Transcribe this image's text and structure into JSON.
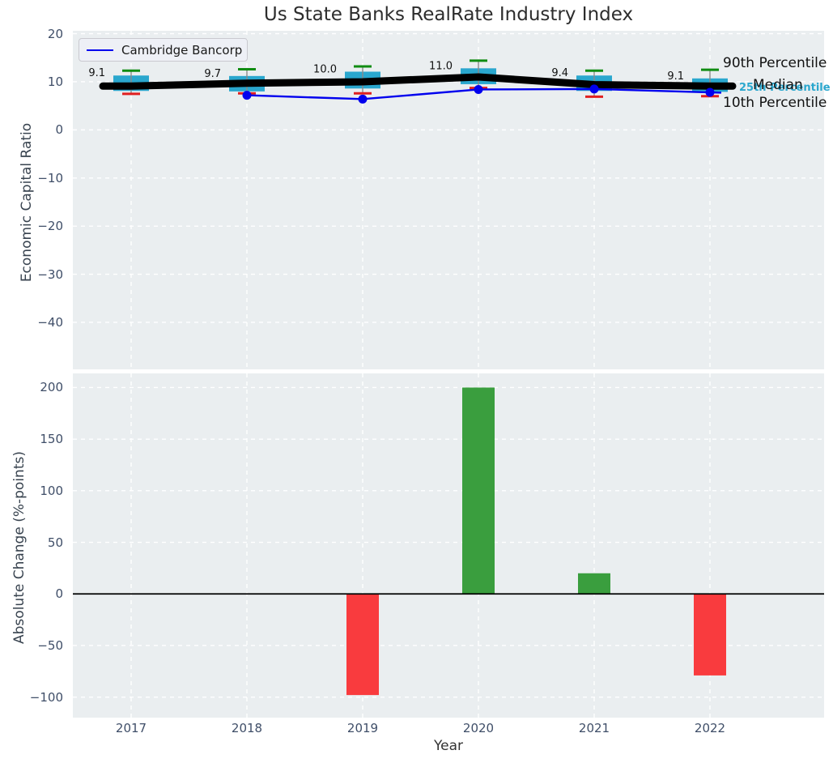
{
  "annotations": {
    "p90": "90th Percentile",
    "median": "Median",
    "p25": "25th Percentile",
    "p10": "10th Percentile"
  },
  "colors": {
    "plot_background": "#eaeef0",
    "grid": "#ffffff",
    "box_fill": "#2aa7ce",
    "whisker": "#8a8a8a",
    "cap_high_green": "#108c12",
    "cap_low_red": "#e02020",
    "median_line": "#000000",
    "company_line_blue": "#0000ee",
    "bar_positive_green": "#3a9e3e",
    "bar_negative_red": "#f93b3e",
    "accent_text_cyan": "#2aa7ce"
  },
  "chart_data": [
    {
      "type": "boxplot",
      "title": "Us State Banks RealRate Industry Index",
      "ylabel": "Economic Capital Ratio",
      "categories": [
        "2017",
        "2018",
        "2019",
        "2020",
        "2021",
        "2022"
      ],
      "yticks": [
        20,
        10,
        0,
        -10,
        -20,
        -30,
        -40
      ],
      "ytick_labels": [
        "20",
        "10",
        "0",
        "−10",
        "−20",
        "−30",
        "−40"
      ],
      "ylim": [
        -49.7,
        20.6
      ],
      "grid": true,
      "legend_position": "upper left",
      "boxes": [
        {
          "category": "2017",
          "p10": 7.5,
          "q1": 8.1,
          "median": 9.1,
          "q3": 11.3,
          "p90": 12.3
        },
        {
          "category": "2018",
          "p10": 7.6,
          "q1": 8.0,
          "median": 9.7,
          "q3": 11.2,
          "p90": 12.6
        },
        {
          "category": "2019",
          "p10": 7.6,
          "q1": 8.6,
          "median": 10.0,
          "q3": 12.1,
          "p90": 13.2
        },
        {
          "category": "2020",
          "p10": 8.7,
          "q1": 9.5,
          "median": 11.0,
          "q3": 12.8,
          "p90": 14.4
        },
        {
          "category": "2021",
          "p10": 6.9,
          "q1": 8.1,
          "median": 9.4,
          "q3": 11.3,
          "p90": 12.3
        },
        {
          "category": "2022",
          "p10": 7.0,
          "q1": 7.9,
          "median": 9.1,
          "q3": 10.7,
          "p90": 12.5
        }
      ],
      "median_labels": [
        "9.1",
        "9.7",
        "10.0",
        "11.0",
        "9.4",
        "9.1"
      ],
      "series": [
        {
          "name": "Cambridge Bancorp",
          "values": [
            null,
            7.2,
            6.4,
            8.4,
            8.5,
            7.8
          ]
        }
      ]
    },
    {
      "type": "bar",
      "ylabel": "Absolute Change (%-points)",
      "xlabel": "Year",
      "categories": [
        "2017",
        "2018",
        "2019",
        "2020",
        "2021",
        "2022"
      ],
      "values": [
        null,
        0,
        -98,
        200,
        20,
        -79
      ],
      "yticks": [
        200,
        150,
        100,
        50,
        0,
        -50,
        -100
      ],
      "ytick_labels": [
        "200",
        "150",
        "100",
        "50",
        "0",
        "−50",
        "−100"
      ],
      "ylim": [
        -120,
        214
      ],
      "grid": true
    }
  ]
}
